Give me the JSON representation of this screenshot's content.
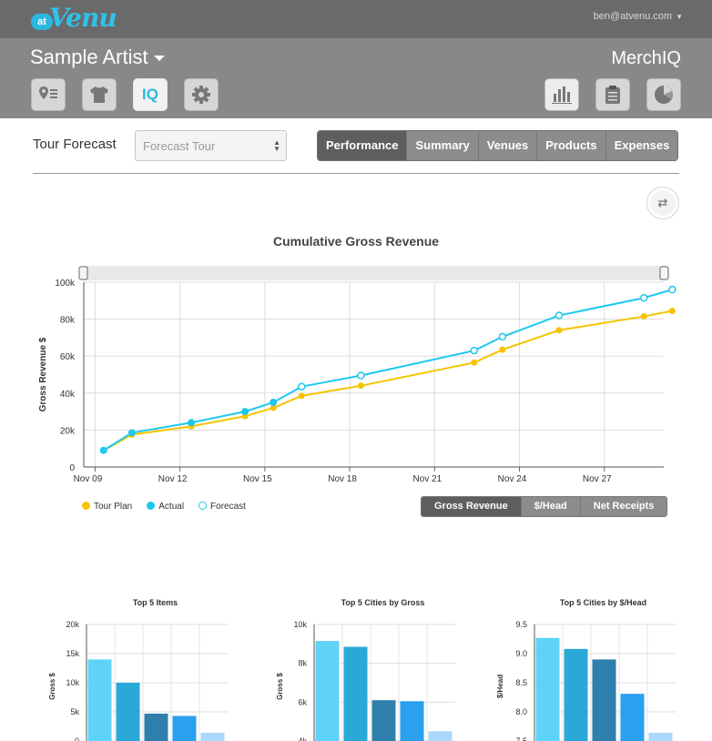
{
  "header": {
    "logo_at": "at",
    "logo_venu": "Venu",
    "user_email": "ben@atvenu.com"
  },
  "subheader": {
    "artist": "Sample Artist",
    "product": "MerchIQ"
  },
  "nav_icons": [
    "map-pin-list-icon",
    "tshirt-icon",
    "iq-icon",
    "gear-icon"
  ],
  "nav_iq_label": "IQ",
  "right_icons": [
    "bar-chart-icon",
    "clipboard-icon",
    "pie-chart-icon"
  ],
  "toolbar": {
    "label": "Tour Forecast",
    "select_value": "Forecast Tour",
    "tabs": [
      "Performance",
      "Summary",
      "Venues",
      "Products",
      "Expenses"
    ],
    "active_tab": "Performance"
  },
  "metric_tabs": [
    "Gross Revenue",
    "$/Head",
    "Net Receipts"
  ],
  "chart_data": [
    {
      "type": "line",
      "title": "Cumulative Gross Revenue",
      "xlabel": "",
      "ylabel": "Gross Revenue $",
      "ylim": [
        0,
        100000
      ],
      "y_ticks": [
        "0",
        "20k",
        "40k",
        "60k",
        "80k",
        "100k"
      ],
      "x_ticks": [
        "Nov 09",
        "Nov 12",
        "Nov 15",
        "Nov 18",
        "Nov 21",
        "Nov 24",
        "Nov 27"
      ],
      "x_range_days": [
        8.6,
        29.1
      ],
      "series": [
        {
          "name": "Tour Plan",
          "color": "#f5c400",
          "x": [
            9.3,
            10.3,
            12.4,
            14.3,
            15.3,
            16.3,
            18.4,
            22.4,
            23.4,
            25.4,
            28.4,
            29.4
          ],
          "values": [
            9000,
            17500,
            22000,
            27500,
            32000,
            38500,
            44000,
            56500,
            63500,
            74000,
            81500,
            84500
          ]
        },
        {
          "name": "Actual",
          "color": "#1ec8f0",
          "x": [
            9.3,
            10.3,
            12.4,
            14.3,
            15.3
          ],
          "values": [
            9000,
            18500,
            24000,
            30000,
            35000
          ]
        },
        {
          "name": "Forecast",
          "color": "#1ec8f0",
          "x": [
            16.3,
            18.4,
            22.4,
            23.4,
            25.4,
            28.4,
            29.4
          ],
          "values": [
            43500,
            49500,
            63000,
            70500,
            82000,
            91500,
            96000
          ]
        }
      ]
    },
    {
      "type": "bar",
      "title": "Top 5 Items",
      "ylabel": "Gross $",
      "ylim": [
        0,
        20000
      ],
      "y_ticks": [
        "0",
        "5k",
        "10k",
        "15k",
        "20k"
      ],
      "values": [
        14000,
        10000,
        4700,
        4300,
        1400
      ]
    },
    {
      "type": "bar",
      "title": "Top 5 Cities by Gross",
      "ylabel": "Gross $",
      "ylim": [
        4000,
        10000
      ],
      "y_ticks": [
        "4k",
        "6k",
        "8k",
        "10k"
      ],
      "values": [
        9150,
        8850,
        6100,
        6050,
        4500
      ]
    },
    {
      "type": "bar",
      "title": "Top 5 Cities by $/Head",
      "ylabel": "$/Head",
      "ylim": [
        7.5,
        9.5
      ],
      "y_ticks": [
        "7.5",
        "8.0",
        "8.5",
        "9.0",
        "9.5"
      ],
      "values": [
        9.27,
        9.08,
        8.9,
        8.31,
        7.64
      ]
    }
  ],
  "bar_colors": [
    "#5fd3f7",
    "#2aa8d8",
    "#2f7fad",
    "#2aa0ee",
    "#a9d8fb"
  ]
}
